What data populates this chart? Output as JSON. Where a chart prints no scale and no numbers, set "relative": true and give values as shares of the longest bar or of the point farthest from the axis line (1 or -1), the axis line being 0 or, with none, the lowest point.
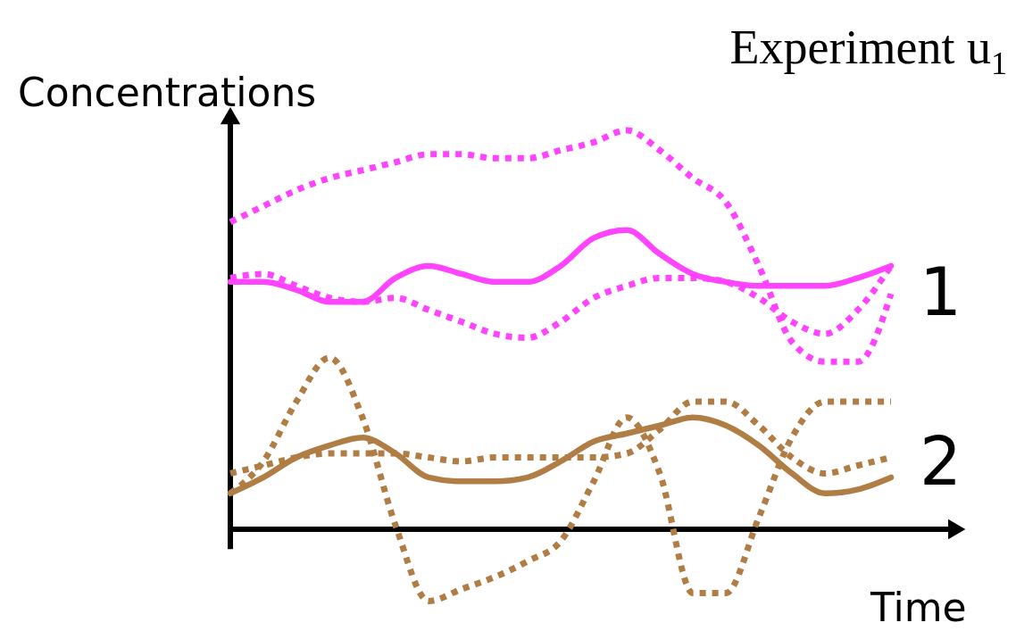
{
  "chart_data": {
    "type": "line",
    "title": "Experiment u$_{1}$",
    "xlabel": "Time",
    "ylabel": "Concentrations",
    "relative": true,
    "categories": [
      null,
      null,
      null,
      null,
      null,
      null,
      null,
      null,
      null,
      null,
      null,
      null,
      null,
      null,
      null,
      null,
      null,
      null,
      null,
      null,
      null
    ],
    "series": [
      {
        "color": "#ff44ff",
        "line_style": "solid",
        "values": [
          0.62,
          0.62,
          0.6,
          0.57,
          0.57,
          0.63,
          0.66,
          0.64,
          0.62,
          0.62,
          0.66,
          0.73,
          0.75,
          0.69,
          0.64,
          0.62,
          0.61,
          0.61,
          0.61,
          0.63,
          0.66
        ]
      },
      {
        "color": "#ff44ff",
        "line_style": "dotted",
        "values": [
          0.77,
          0.81,
          0.85,
          0.88,
          0.9,
          0.92,
          0.94,
          0.94,
          0.93,
          0.93,
          0.95,
          0.97,
          1.0,
          0.95,
          0.88,
          0.82,
          0.66,
          0.47,
          0.42,
          0.42,
          0.59
        ]
      },
      {
        "color": "#ff44ff",
        "line_style": "dotted",
        "values": [
          0.63,
          0.64,
          0.61,
          0.58,
          0.57,
          0.58,
          0.55,
          0.52,
          0.49,
          0.48,
          0.52,
          0.58,
          0.61,
          0.63,
          0.63,
          0.62,
          0.58,
          0.52,
          0.49,
          0.55,
          0.66
        ]
      },
      {
        "color": "#b07d45",
        "line_style": "solid",
        "values": [
          0.09,
          0.13,
          0.18,
          0.21,
          0.23,
          0.19,
          0.13,
          0.12,
          0.12,
          0.13,
          0.17,
          0.22,
          0.24,
          0.26,
          0.28,
          0.26,
          0.21,
          0.14,
          0.09,
          0.1,
          0.13
        ]
      },
      {
        "color": "#b07d45",
        "line_style": "dotted",
        "values": [
          0.14,
          0.16,
          0.18,
          0.19,
          0.19,
          0.19,
          0.18,
          0.17,
          0.18,
          0.18,
          0.18,
          0.18,
          0.19,
          0.25,
          0.32,
          0.32,
          0.26,
          0.18,
          0.14,
          0.16,
          0.18
        ]
      },
      {
        "color": "#b07d45",
        "line_style": "dotted",
        "values": [
          0.09,
          0.17,
          0.32,
          0.43,
          0.28,
          0.01,
          -0.18,
          -0.15,
          -0.12,
          -0.08,
          -0.03,
          0.12,
          0.28,
          0.14,
          -0.16,
          -0.16,
          0.03,
          0.23,
          0.32,
          0.32,
          0.32
        ]
      }
    ],
    "annotations": [
      "1",
      "2"
    ]
  }
}
